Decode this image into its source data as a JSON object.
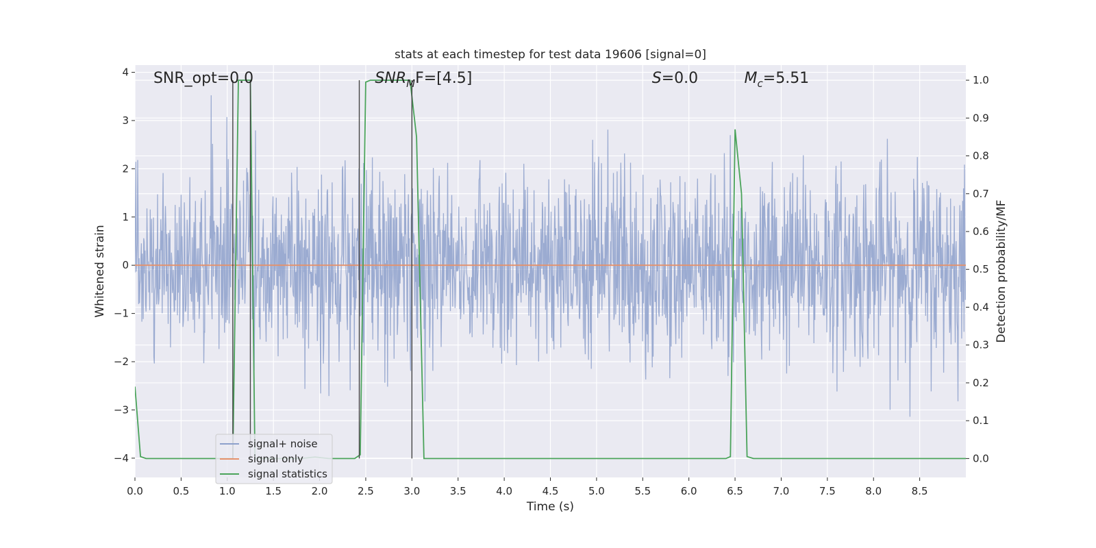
{
  "chart_data": {
    "type": "line",
    "title": "stats at each timestep for test data 19606 [signal=0]",
    "xlabel": "Time (s)",
    "ylabel_left": "Whitened strain",
    "ylabel_right": "Detection probability/MF",
    "xlim": [
      0.0,
      9.0
    ],
    "ylim_left": [
      -4.4,
      4.15
    ],
    "ylim_right": [
      -0.05,
      1.04
    ],
    "xticks": [
      0.0,
      0.5,
      1.0,
      1.5,
      2.0,
      2.5,
      3.0,
      3.5,
      4.0,
      4.5,
      5.0,
      5.5,
      6.0,
      6.5,
      7.0,
      7.5,
      8.0,
      8.5
    ],
    "xtick_labels": [
      "0.0",
      "0.5",
      "1.0",
      "1.5",
      "2.0",
      "2.5",
      "3.0",
      "3.5",
      "4.0",
      "4.5",
      "5.0",
      "5.5",
      "6.0",
      "6.5",
      "7.0",
      "7.5",
      "8.0",
      "8.5"
    ],
    "yticks_left": [
      -4,
      -3,
      -2,
      -1,
      0,
      1,
      2,
      3,
      4
    ],
    "ytick_labels_left": [
      "−4",
      "−3",
      "−2",
      "−1",
      "0",
      "1",
      "2",
      "3",
      "4"
    ],
    "yticks_right": [
      0.0,
      0.1,
      0.2,
      0.3,
      0.4,
      0.5,
      0.6,
      0.7,
      0.8,
      0.9,
      1.0
    ],
    "ytick_labels_right": [
      "0.0",
      "0.1",
      "0.2",
      "0.3",
      "0.4",
      "0.5",
      "0.6",
      "0.7",
      "0.8",
      "0.9",
      "1.0"
    ],
    "grid": true,
    "legend_placement": "lower-left",
    "series": [
      {
        "name": "signal+ noise",
        "axis": "left",
        "color": "#8da0cb",
        "kind": "noise",
        "mean": 0.0,
        "std": 1.0,
        "count": 1800,
        "x_range": [
          0.0,
          9.0
        ]
      },
      {
        "name": "signal only",
        "axis": "left",
        "color": "#e5916b",
        "x": [
          0.0,
          9.0
        ],
        "y": [
          0.0,
          0.0
        ]
      },
      {
        "name": "signal statistics",
        "axis": "right",
        "color": "#4aa35a",
        "x": [
          0.0,
          0.06,
          0.12,
          1.0,
          1.06,
          1.12,
          1.17,
          1.25,
          1.3,
          1.4,
          1.8,
          1.95,
          2.1,
          2.38,
          2.44,
          2.5,
          2.55,
          2.98,
          3.05,
          3.13,
          3.2,
          6.4,
          6.45,
          6.5,
          6.57,
          6.63,
          6.7,
          9.0
        ],
        "y": [
          0.19,
          0.005,
          0.0,
          0.0,
          0.0,
          1.0,
          1.0,
          1.0,
          0.0,
          0.0,
          0.0,
          0.004,
          0.0,
          0.0,
          0.01,
          0.995,
          1.0,
          1.0,
          0.85,
          0.0,
          0.0,
          0.0,
          0.005,
          0.87,
          0.7,
          0.005,
          0.0,
          0.0
        ]
      }
    ],
    "vertical_markers": {
      "color": "#444444",
      "x": [
        1.06,
        1.25,
        2.43,
        3.0
      ]
    },
    "annotations": [
      {
        "text": "SNR_opt=0.0",
        "x": 0.2
      },
      {
        "text": "SNR",
        "sub": "M",
        "rest": "F=[4.5]",
        "italic": true,
        "x": 2.6
      },
      {
        "text": "S",
        "rest": "=0.0",
        "italic": true,
        "x": 5.6
      },
      {
        "text": "M",
        "sub": "c",
        "rest": "=5.51",
        "italic": true,
        "x": 6.6
      }
    ]
  }
}
